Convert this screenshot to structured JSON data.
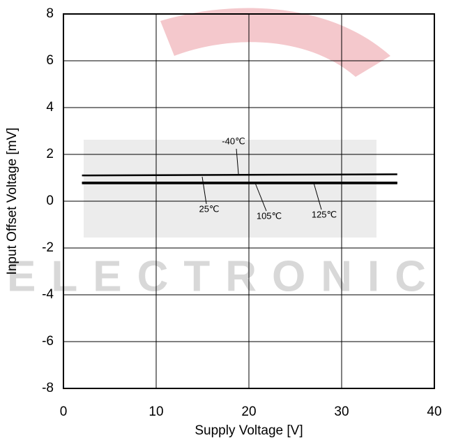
{
  "chart_data": {
    "type": "line",
    "watermark": "ELECTRONIC",
    "xlabel": "Supply Voltage [V]",
    "ylabel": "Input Offset Voltage [mV]",
    "x": [
      2,
      36
    ],
    "series": [
      {
        "name": "-40℃",
        "color": "#000000",
        "values": [
          1.1,
          1.15
        ]
      },
      {
        "name": "25℃",
        "color": "#000000",
        "values": [
          0.8,
          0.8
        ]
      },
      {
        "name": "105℃",
        "color": "#000000",
        "values": [
          0.78,
          0.78
        ]
      },
      {
        "name": "125℃",
        "color": "#000000",
        "values": [
          0.76,
          0.76
        ]
      }
    ],
    "xlim": [
      0,
      40
    ],
    "xticks": [
      0,
      10,
      20,
      30,
      40
    ],
    "ylim": [
      -8,
      8
    ],
    "yticks": [
      -8,
      -6,
      -4,
      -2,
      0,
      2,
      4,
      6,
      8
    ],
    "grid": true
  }
}
